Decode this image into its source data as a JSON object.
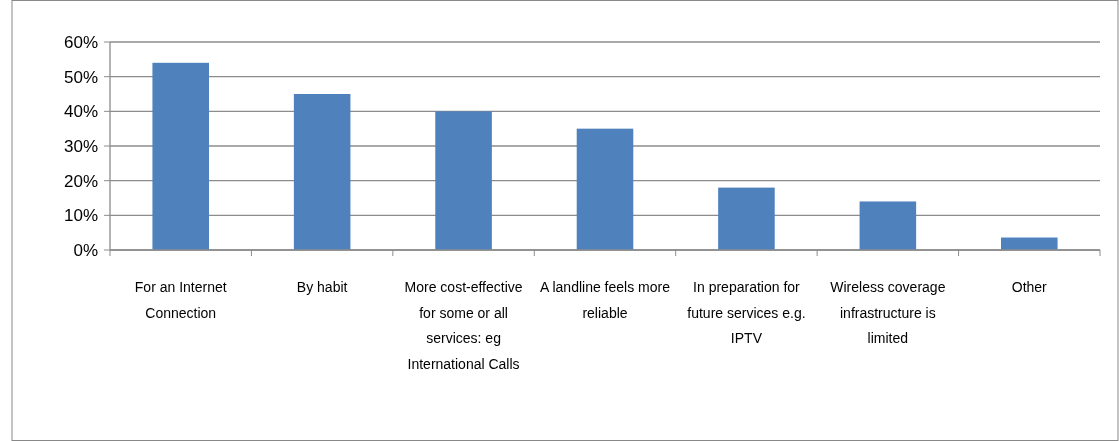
{
  "chart_data": {
    "type": "bar",
    "categories": [
      "For an Internet Connection",
      "By habit",
      "More cost-effective for some or all services: eg International Calls",
      "A landline feels more reliable",
      "In preparation for future services e.g. IPTV",
      "Wireless coverage infrastructure is limited",
      "Other"
    ],
    "values": [
      54,
      45,
      40,
      35,
      18,
      14,
      3.6
    ],
    "color": "#4f81bd",
    "ylim": [
      0,
      60
    ],
    "yticks": [
      {
        "value": 0,
        "label": "0%"
      },
      {
        "value": 10,
        "label": "10%"
      },
      {
        "value": 20,
        "label": "20%"
      },
      {
        "value": 30,
        "label": "30%"
      },
      {
        "value": 40,
        "label": "40%"
      },
      {
        "value": 50,
        "label": "50%"
      },
      {
        "value": 60,
        "label": "60%"
      }
    ],
    "grid": "y"
  }
}
